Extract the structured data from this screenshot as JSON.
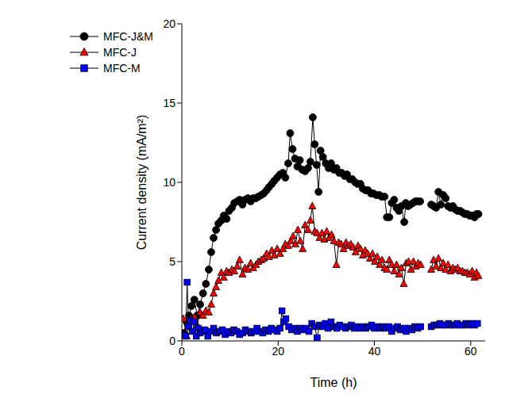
{
  "chart_data": {
    "type": "line",
    "x_label": "Time (h)",
    "y_label": "Current density (mA/m²)",
    "xlim": [
      0,
      63
    ],
    "xticks": [
      0,
      20,
      40,
      60
    ],
    "ylim": [
      0,
      20
    ],
    "yticks": [
      0,
      5,
      10,
      15,
      20
    ],
    "grid": false,
    "legend": "upper left",
    "series": [
      {
        "name": "MFC-J&M",
        "color": "#000000",
        "marker": "circle",
        "line_style": "solid",
        "x": [
          0.4,
          1,
          1.5,
          2,
          2.6,
          3.2,
          3.8,
          4.4,
          5,
          5.6,
          6.1,
          6.6,
          7.1,
          7.6,
          8.2,
          8.7,
          9.3,
          9.8,
          10.4,
          10.9,
          11.5,
          12,
          12.6,
          13.1,
          13.7,
          14.3,
          14.8,
          15.4,
          15.9,
          16.5,
          17,
          17.6,
          18.1,
          18.7,
          19.2,
          19.8,
          20.4,
          21,
          21.5,
          22.1,
          22.5,
          23,
          23.5,
          24,
          24.5,
          25,
          25.6,
          26.2,
          26.7,
          27.2,
          27.6,
          28,
          28.4,
          28.8,
          29.3,
          29.9,
          30.5,
          31,
          31.6,
          32.1,
          32.7,
          33.2,
          33.8,
          34.3,
          34.9,
          35.4,
          36,
          36.5,
          37.1,
          37.6,
          38.2,
          38.7,
          39.3,
          39.8,
          40.4,
          41,
          41.5,
          42.1,
          42.6,
          43.1,
          43.6,
          44.1,
          44.6,
          45.1,
          45.6,
          46.2,
          46.5,
          47,
          47.5,
          48,
          48.5,
          49,
          49.5,
          50.6,
          51.8,
          52.3,
          52.8,
          53.3,
          53.8,
          54.3,
          54.8,
          55.3,
          55.8,
          56.3,
          56.8,
          57.3,
          57.8,
          58.3,
          58.8,
          59.3,
          59.8,
          60.3,
          60.8,
          61.2,
          61.6
        ],
        "values": [
          0.5,
          1.2,
          1.6,
          2.2,
          2.6,
          1.6,
          2.3,
          3.0,
          3.6,
          4.5,
          5.6,
          6.5,
          7.0,
          7.4,
          7.6,
          7.9,
          7.7,
          8.2,
          8.4,
          8.7,
          8.8,
          8.9,
          8.6,
          8.9,
          9.0,
          8.8,
          9.0,
          9.0,
          9.1,
          9.2,
          9.3,
          9.5,
          9.7,
          9.9,
          10.1,
          10.3,
          10.5,
          10.6,
          10.3,
          11.2,
          13.1,
          12.1,
          11.5,
          11.0,
          11.4,
          10.8,
          10.7,
          10.9,
          11.3,
          14.1,
          12.4,
          11.1,
          9.4,
          12.0,
          11.6,
          11.2,
          10.9,
          11.2,
          10.8,
          10.9,
          10.6,
          10.6,
          10.4,
          10.5,
          10.2,
          10.2,
          10.0,
          9.9,
          9.9,
          9.6,
          9.5,
          9.5,
          9.3,
          9.3,
          9.2,
          9.2,
          9.1,
          9.1,
          7.8,
          7.8,
          8.7,
          8.9,
          8.4,
          8.2,
          8.5,
          7.5,
          8.7,
          8.5,
          8.6,
          8.7,
          8.8,
          8.8,
          8.8,
          null,
          8.6,
          8.5,
          8.4,
          9.4,
          8.6,
          9.2,
          9.0,
          8.5,
          8.4,
          8.5,
          8.3,
          8.2,
          8.2,
          8.1,
          8.0,
          8.0,
          7.9,
          7.9,
          7.8,
          8.0,
          8.0
        ]
      },
      {
        "name": "MFC-J",
        "color": "#ff0000",
        "marker": "triangle",
        "line_style": "solid",
        "x": [
          0.3,
          1,
          1.5,
          2,
          2.6,
          3.2,
          3.8,
          4.4,
          5,
          5.6,
          6.1,
          6.6,
          7.1,
          7.6,
          8.2,
          8.7,
          9.3,
          9.8,
          10.4,
          10.9,
          11.5,
          12,
          12.6,
          13.1,
          13.7,
          14.3,
          14.8,
          15.4,
          15.9,
          16.5,
          17,
          17.6,
          18.1,
          18.7,
          19.2,
          19.8,
          20.4,
          21,
          21.5,
          22.1,
          22.6,
          23.1,
          23.6,
          24.1,
          24.6,
          25.1,
          25.6,
          26.2,
          26.7,
          27.1,
          27.6,
          28.1,
          28.6,
          29.1,
          29.6,
          30.1,
          30.6,
          31.1,
          31.6,
          32.1,
          32.6,
          33.1,
          33.6,
          34.1,
          34.6,
          35.1,
          35.6,
          36.1,
          36.6,
          37.1,
          37.6,
          38.1,
          38.6,
          39.1,
          39.6,
          40.1,
          40.6,
          41.1,
          41.6,
          42.1,
          42.6,
          43.1,
          43.6,
          44.1,
          44.6,
          45.1,
          45.6,
          46.1,
          46.6,
          47.1,
          47.6,
          48.1,
          48.6,
          49.1,
          49.6,
          50.6,
          51.8,
          52.3,
          52.8,
          53.3,
          53.8,
          54.3,
          54.8,
          55.3,
          55.8,
          56.3,
          56.8,
          57.3,
          57.8,
          58.3,
          58.8,
          59.3,
          59.8,
          60.3,
          60.8,
          61.2,
          61.6
        ],
        "values": [
          1.4,
          0.3,
          0.9,
          1.4,
          1.5,
          1.0,
          1.8,
          1.6,
          1.9,
          1.8,
          2.3,
          3.0,
          3.4,
          3.8,
          4.3,
          4.0,
          4.4,
          4.3,
          4.5,
          4.4,
          4.7,
          5.1,
          4.2,
          4.6,
          4.5,
          4.9,
          4.6,
          4.8,
          5.0,
          5.1,
          5.2,
          5.5,
          5.3,
          5.7,
          5.4,
          5.8,
          5.5,
          5.8,
          6.1,
          6.0,
          6.3,
          6.6,
          6.1,
          7.0,
          6.3,
          5.8,
          7.3,
          7.0,
          7.6,
          8.5,
          6.9,
          6.8,
          6.5,
          6.8,
          6.4,
          6.9,
          6.5,
          6.7,
          6.3,
          4.8,
          6.2,
          6.1,
          5.8,
          6.2,
          6.0,
          6.1,
          5.9,
          5.6,
          6.0,
          5.8,
          5.4,
          5.7,
          5.5,
          5.2,
          5.5,
          5.0,
          5.3,
          4.8,
          5.1,
          4.6,
          4.5,
          5.1,
          4.8,
          4.4,
          4.8,
          4.2,
          4.6,
          3.6,
          4.9,
          5.0,
          4.5,
          5.0,
          4.7,
          4.9,
          4.8,
          null,
          4.5,
          5.1,
          4.7,
          5.2,
          4.6,
          4.9,
          4.5,
          4.8,
          4.4,
          4.6,
          4.5,
          4.6,
          4.4,
          4.4,
          4.3,
          4.3,
          4.2,
          4.4,
          4.0,
          4.3,
          4.1
        ]
      },
      {
        "name": "MFC-M",
        "color": "#0000ff",
        "marker": "square",
        "line_style": "solid",
        "x": [
          0.3,
          0.8,
          1.1,
          1.4,
          1.8,
          2.2,
          2.6,
          3,
          3.4,
          3.8,
          4.3,
          4.8,
          5.4,
          6,
          6.6,
          7.2,
          7.8,
          8.4,
          9,
          9.6,
          10.2,
          10.8,
          11.4,
          12,
          12.6,
          13.2,
          13.8,
          14.4,
          15,
          15.6,
          16.2,
          16.8,
          17.4,
          18,
          18.6,
          19.2,
          19.8,
          20.4,
          20.8,
          21.2,
          21.6,
          22.2,
          22.8,
          23.4,
          24,
          24.6,
          25.2,
          25.8,
          26.4,
          27,
          27.6,
          28.1,
          28.6,
          29.2,
          29.8,
          30.4,
          31,
          31.6,
          32.2,
          32.8,
          33.4,
          34,
          34.6,
          35.2,
          35.8,
          36.4,
          37,
          37.6,
          38.2,
          38.8,
          39.4,
          40,
          40.6,
          41.2,
          41.8,
          42.4,
          43,
          43.6,
          44.2,
          44.8,
          45.4,
          46,
          46.6,
          47.2,
          47.8,
          48.4,
          49,
          49.6,
          50.6,
          51.8,
          52.4,
          53,
          53.6,
          54.2,
          54.8,
          55.4,
          56,
          56.6,
          57.2,
          57.8,
          58.4,
          59,
          59.6,
          60.2,
          60.8,
          61.4
        ],
        "values": [
          0.4,
          0.3,
          3.7,
          0.9,
          1.3,
          0.6,
          1.2,
          0.3,
          0.8,
          0.5,
          0.6,
          0.7,
          0.3,
          0.6,
          0.8,
          0.5,
          0.6,
          0.7,
          0.4,
          0.6,
          0.5,
          0.7,
          0.6,
          0.4,
          0.5,
          0.7,
          0.6,
          0.5,
          0.6,
          0.8,
          0.6,
          0.5,
          0.7,
          0.6,
          0.8,
          0.7,
          0.6,
          0.8,
          1.9,
          1.2,
          1.4,
          0.9,
          0.7,
          0.8,
          0.6,
          0.8,
          0.7,
          0.8,
          0.6,
          1.1,
          0.9,
          0.2,
          1.0,
          0.9,
          1.1,
          0.8,
          1.2,
          0.9,
          0.8,
          1.0,
          0.9,
          0.8,
          0.9,
          1.0,
          0.8,
          0.9,
          0.8,
          0.9,
          0.8,
          0.9,
          1.0,
          0.8,
          0.9,
          0.8,
          0.9,
          0.8,
          0.9,
          0.6,
          0.8,
          0.9,
          0.7,
          0.8,
          0.6,
          0.8,
          0.7,
          0.9,
          0.8,
          0.9,
          null,
          0.9,
          1.0,
          1.0,
          1.1,
          1.0,
          1.0,
          1.1,
          1.0,
          1.0,
          1.1,
          1.0,
          1.0,
          1.1,
          1.0,
          1.1,
          1.0,
          1.1
        ]
      }
    ]
  }
}
